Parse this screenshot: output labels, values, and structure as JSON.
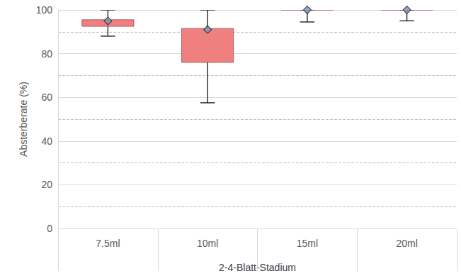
{
  "chart_data": {
    "type": "boxplot",
    "y_label": "Absterberate (%)",
    "x_label": "2-4-Blatt-Stadium",
    "categories": [
      "7.5ml",
      "10ml",
      "15ml",
      "20ml"
    ],
    "series": [
      {
        "color": "#f08080",
        "marker": "diamond",
        "low": [
          88,
          57.5,
          94.5,
          95
        ],
        "q1": [
          92.5,
          76,
          100,
          100
        ],
        "q3": [
          95.5,
          91.5,
          100,
          100
        ],
        "high": [
          100,
          100,
          100,
          100
        ],
        "mean": [
          95,
          91,
          100,
          100
        ]
      }
    ],
    "ylim": [
      0,
      100
    ],
    "yticks": [
      0,
      20,
      40,
      60,
      80,
      100
    ],
    "grid": true
  }
}
